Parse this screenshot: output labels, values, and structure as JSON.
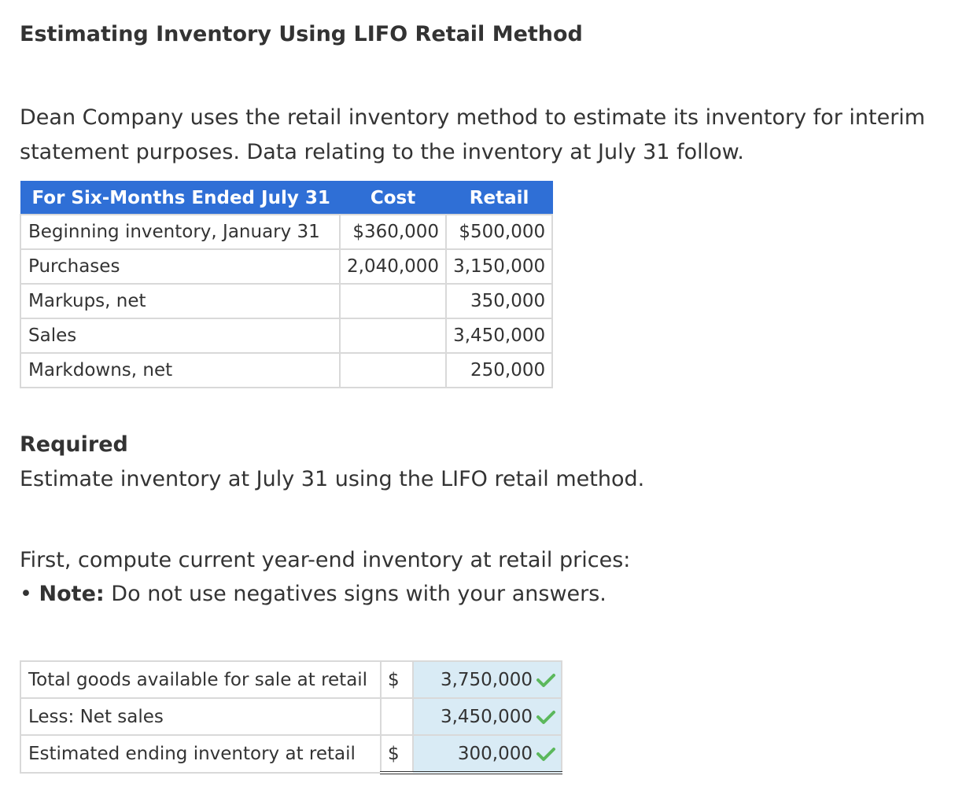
{
  "title": "Estimating Inventory Using LIFO Retail Method",
  "intro": "Dean Company uses the retail inventory method to estimate its inventory for interim statement purposes. Data relating to the inventory at July 31 follow.",
  "data_table": {
    "headers": [
      "For Six-Months Ended July 31",
      "Cost",
      "Retail"
    ],
    "rows": [
      {
        "label": "Beginning inventory, January 31",
        "cost": "$360,000",
        "retail": "$500,000"
      },
      {
        "label": "Purchases",
        "cost": "2,040,000",
        "retail": "3,150,000"
      },
      {
        "label": "Markups, net",
        "cost": "",
        "retail": "350,000"
      },
      {
        "label": "Sales",
        "cost": "",
        "retail": "3,450,000"
      },
      {
        "label": "Markdowns, net",
        "cost": "",
        "retail": "250,000"
      }
    ]
  },
  "required": {
    "heading": "Required",
    "text": "Estimate inventory at July 31 using the LIFO retail method."
  },
  "instructions": {
    "first": "First, compute current year-end inventory at retail prices:",
    "bullet": "•",
    "note_label": "Note:",
    "note_text": "Do not use negatives signs with your answers."
  },
  "calc_table": {
    "rows": [
      {
        "label": "Total goods available for sale at retail",
        "currency": "$",
        "value": "3,750,000",
        "status_icon": "check-icon"
      },
      {
        "label": "Less: Net sales",
        "currency": "",
        "value": "3,450,000",
        "status_icon": "check-icon"
      },
      {
        "label": "Estimated ending inventory at retail",
        "currency": "$",
        "value": "300,000",
        "status_icon": "check-icon"
      }
    ]
  },
  "colors": {
    "header_blue": "#2f6fd6",
    "answer_bg": "#d9ebf5",
    "check_green": "#5cb85c"
  }
}
